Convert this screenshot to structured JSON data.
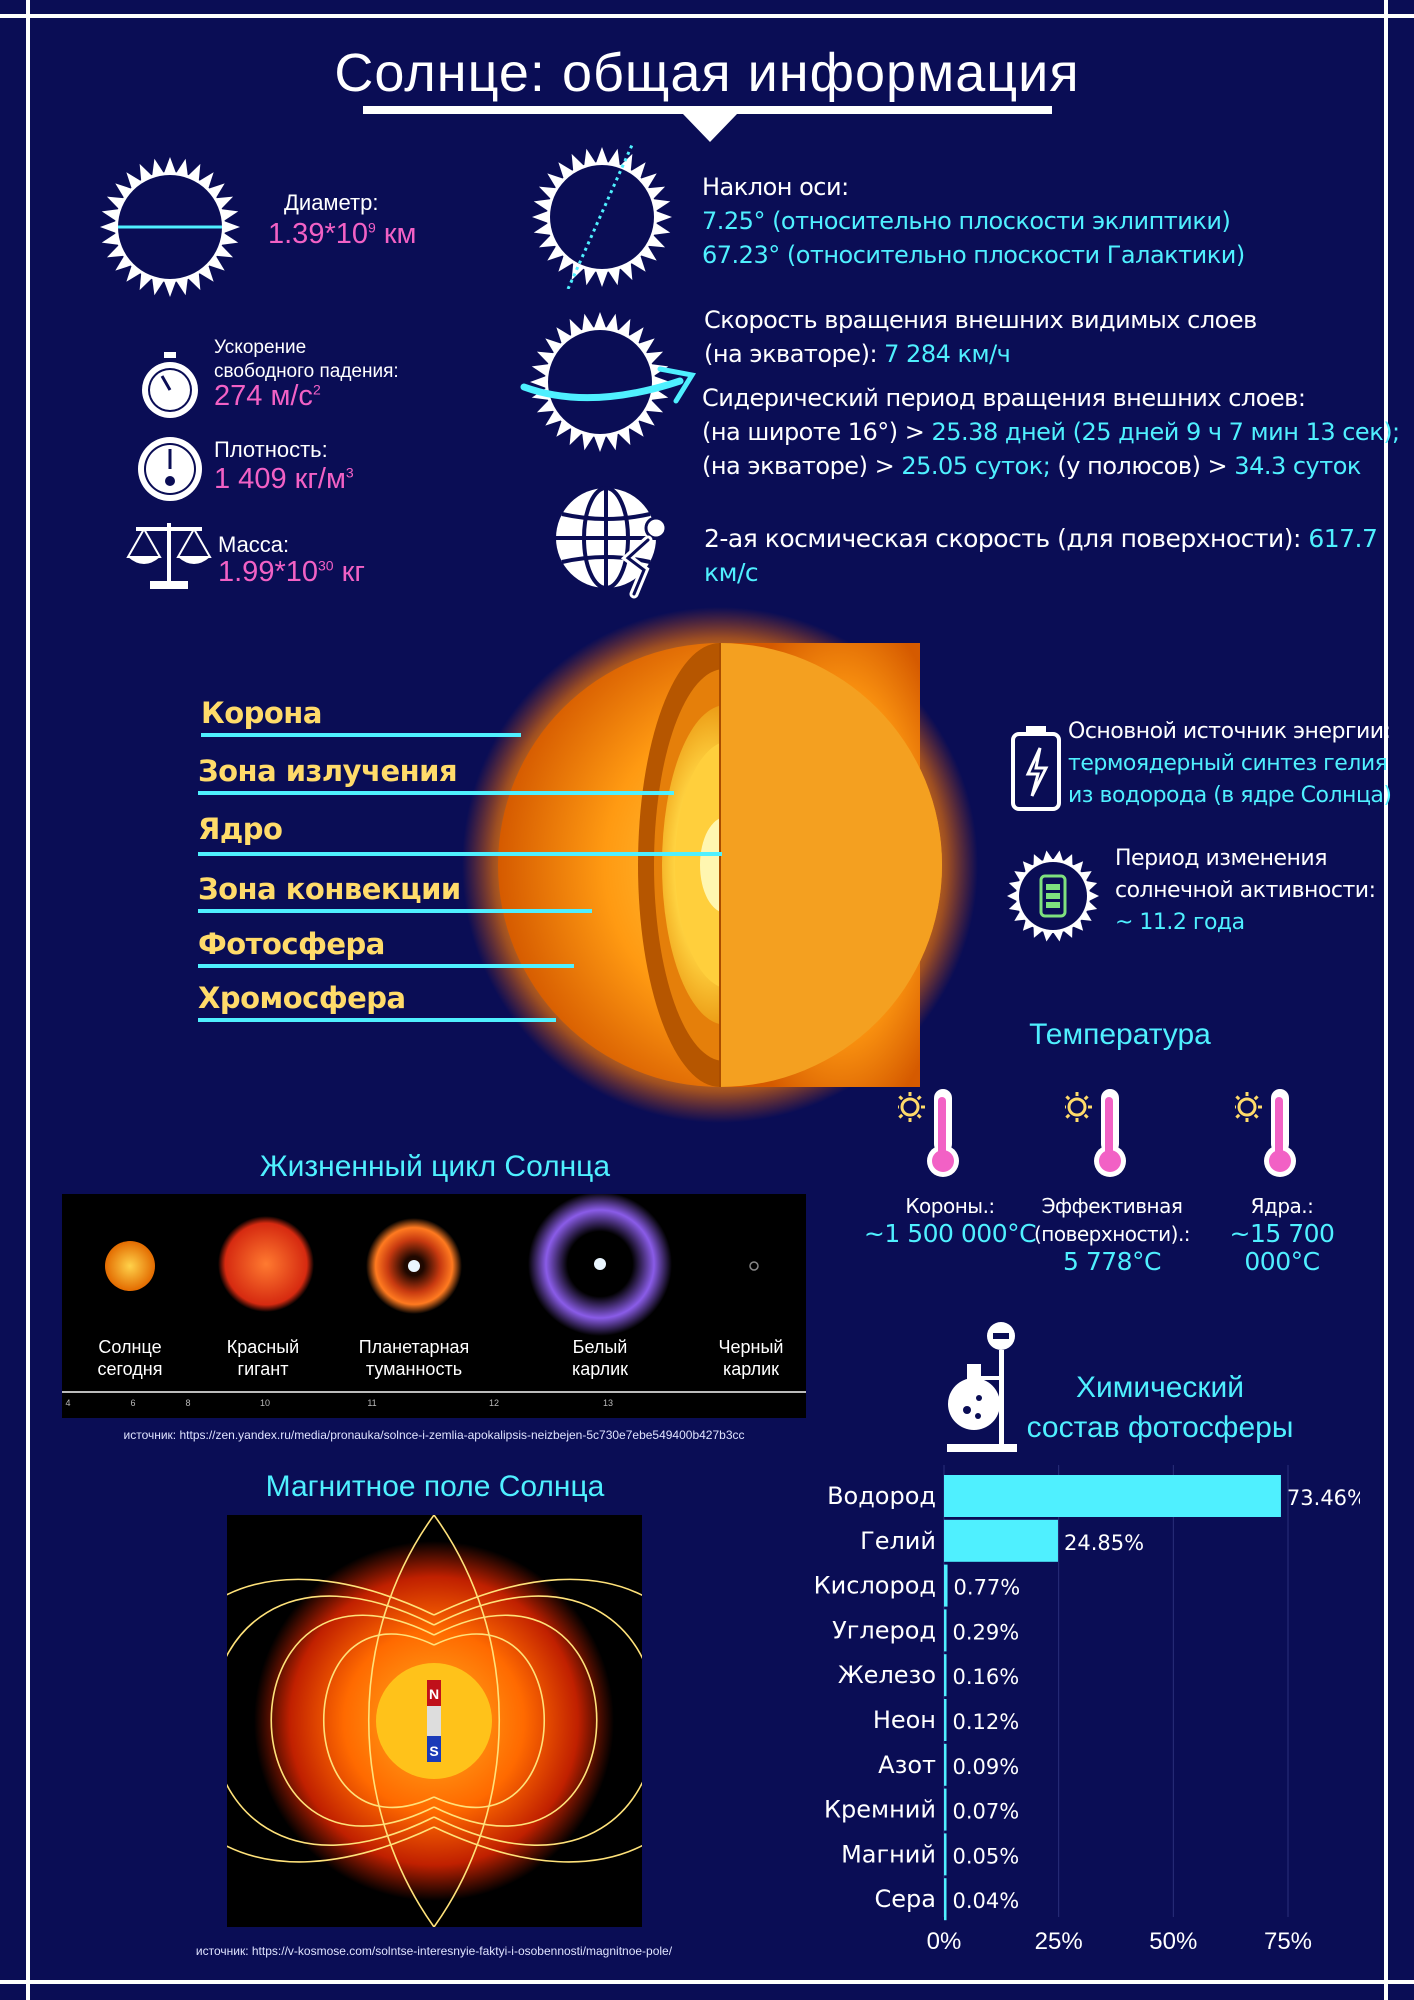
{
  "title": "Солнце: общая информация",
  "diameter": {
    "label": "Диаметр:",
    "value_main": "1.39*10",
    "value_exp": "9",
    "value_unit": " км"
  },
  "gravity": {
    "label_line1": "Ускорение",
    "label_line2": "свободного падения:",
    "value_main": "274 м/с",
    "value_exp": "2"
  },
  "density": {
    "label": "Плотность:",
    "value_main": "1 409 кг/м",
    "value_exp": "3"
  },
  "mass": {
    "label": "Масса:",
    "value_main": "1.99*10",
    "value_exp": "30",
    "value_unit": " кг"
  },
  "axis_tilt": {
    "label": "Наклон оси:",
    "line1": "7.25° (относительно плоскости эклиптики)",
    "line2": "67.23° (относительно плоскости Галактики)"
  },
  "rotation_speed": {
    "line1": "Скорость вращения внешних видимых слоев",
    "line2_prefix": "(на экваторе): ",
    "line2_value": "7 284 км/ч"
  },
  "sidereal": {
    "label": "Сидерический период вращения внешних слоев:",
    "l2_prefix": "(на широте 16°) > ",
    "l2_value": "25.38 дней (25 дней 9 ч 7 мин 13 сек);",
    "l3_prefix": "(на экваторе) > ",
    "l3_value": "25.05 суток;",
    "l3_mid": " (у полюсов) > ",
    "l3_value2": "34.3 суток"
  },
  "escape_velocity": {
    "label": "2-ая космическая скорость (для поверхности): ",
    "value": "617.7 км/с"
  },
  "layers": [
    "Корона",
    "Зона излучения",
    "Ядро",
    "Зона конвекции",
    "Фотосфера",
    "Хромосфера"
  ],
  "energy": {
    "label": "Основной источник энергии:",
    "line1": "термоядерный синтез гелия",
    "line2": "из водорода (в ядре Солнца)"
  },
  "activity": {
    "line1": "Период изменения",
    "line2": "солнечной активности:",
    "value": "~ 11.2 года"
  },
  "temperature": {
    "title": "Температура",
    "items": [
      {
        "label1": "Короны.:",
        "label2": "",
        "value": "~1 500 000°C"
      },
      {
        "label1": "Эффективная",
        "label2": "(поверхности).:",
        "value": "5 778°C"
      },
      {
        "label1": "Ядра.:",
        "label2": "",
        "value": "~15 700 000°C"
      }
    ]
  },
  "life_cycle": {
    "title": "Жизненный цикл Солнца",
    "stages": [
      {
        "line1": "Солнце",
        "line2": "сегодня"
      },
      {
        "line1": "Красный",
        "line2": "гигант"
      },
      {
        "line1": "Планетарная",
        "line2": "туманность"
      },
      {
        "line1": "Белый",
        "line2": "карлик"
      },
      {
        "line1": "Черный",
        "line2": "карлик"
      }
    ],
    "ticks": [
      "4",
      "6",
      "8",
      "10",
      "11",
      "12",
      "13"
    ],
    "source": "источник: https://zen.yandex.ru/media/pronauka/solnce-i-zemlia-apokalipsis-neizbejen-5c730e7ebe549400b427b3cc"
  },
  "magnetic": {
    "title": "Магнитное поле Солнца",
    "north": "N",
    "south": "S",
    "source": "источник: https://v-kosmose.com/solntse-interesnyie-faktyi-i-osobennosti/magnitnoe-pole/"
  },
  "chart_data": {
    "type": "bar",
    "orientation": "horizontal",
    "title": "Химический состав фотосферы",
    "title_line1": "Химический",
    "title_line2": "состав фотосферы",
    "categories": [
      "Водород",
      "Гелий",
      "Кислород",
      "Углерод",
      "Железо",
      "Неон",
      "Азот",
      "Кремний",
      "Магний",
      "Сера"
    ],
    "values": [
      73.46,
      24.85,
      0.77,
      0.29,
      0.16,
      0.12,
      0.09,
      0.07,
      0.05,
      0.04
    ],
    "value_labels": [
      "73.46%",
      "24.85%",
      "0.77%",
      "0.29%",
      "0.16%",
      "0.12%",
      "0.09%",
      "0.07%",
      "0.05%",
      "0.04%"
    ],
    "xlim": [
      0,
      75
    ],
    "xticks": [
      0,
      25,
      50,
      75
    ],
    "xtick_labels": [
      "0%",
      "25%",
      "50%",
      "75%"
    ],
    "grid": true,
    "bar_color": "#4ff0ff"
  },
  "colors": {
    "background": "#0a0d55",
    "accent": "#4ff0ff",
    "pink": "#f261c5",
    "yellow": "#ffdb6a"
  }
}
